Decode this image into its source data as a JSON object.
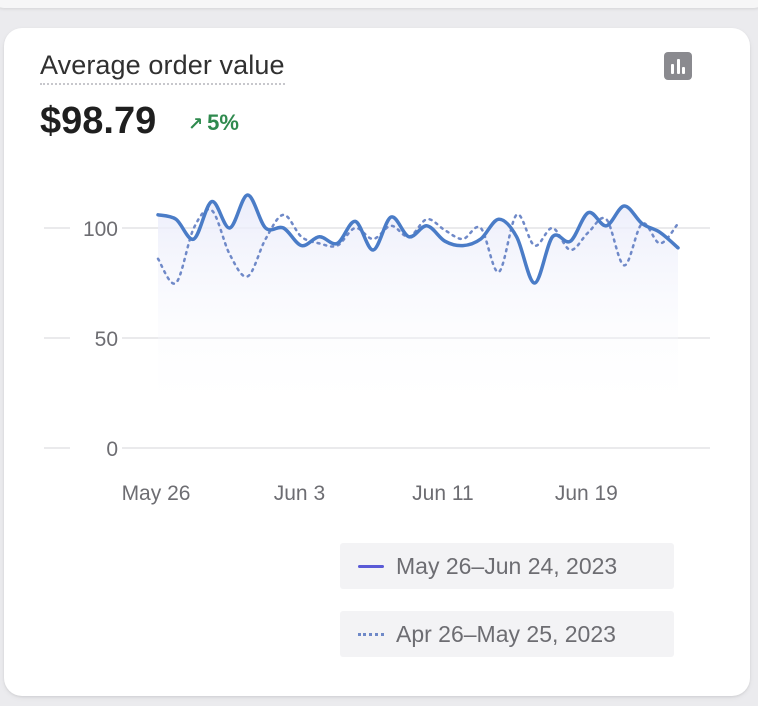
{
  "card": {
    "title": "Average order value",
    "value": "$98.79",
    "delta": "5%",
    "delta_icon": "arrow-up-right-icon",
    "chart_icon": "bar-chart-icon"
  },
  "colors": {
    "current_line": "#4a7cc7",
    "previous_line": "#6f89c8",
    "legend_current": "#5a5ad6",
    "delta_positive": "#2f8a4e"
  },
  "chart_data": {
    "type": "line",
    "ylim": [
      0,
      100
    ],
    "y_ticks": [
      "100",
      "50",
      "0"
    ],
    "x_tick_labels": [
      "May 26",
      "Jun 3",
      "Jun 11",
      "Jun 19"
    ],
    "grid": true,
    "legend_position": "bottom-right",
    "series": [
      {
        "name": "May 26–Jun 24, 2023",
        "style": "solid",
        "values": [
          106,
          104,
          95,
          112,
          100,
          115,
          100,
          100,
          92,
          96,
          93,
          103,
          90,
          105,
          96,
          101,
          94,
          92,
          95,
          104,
          96,
          75,
          96,
          94,
          107,
          101,
          110,
          102,
          98,
          91
        ]
      },
      {
        "name": "Apr 26–May 25, 2023",
        "style": "dotted",
        "values": [
          86,
          75,
          100,
          108,
          88,
          78,
          95,
          106,
          96,
          93,
          92,
          100,
          95,
          101,
          96,
          104,
          99,
          95,
          100,
          80,
          106,
          92,
          100,
          90,
          98,
          104,
          83,
          102,
          93,
          102
        ]
      }
    ]
  },
  "legend": {
    "current_label": "May 26–Jun 24, 2023",
    "previous_label": "Apr 26–May 25, 2023"
  }
}
